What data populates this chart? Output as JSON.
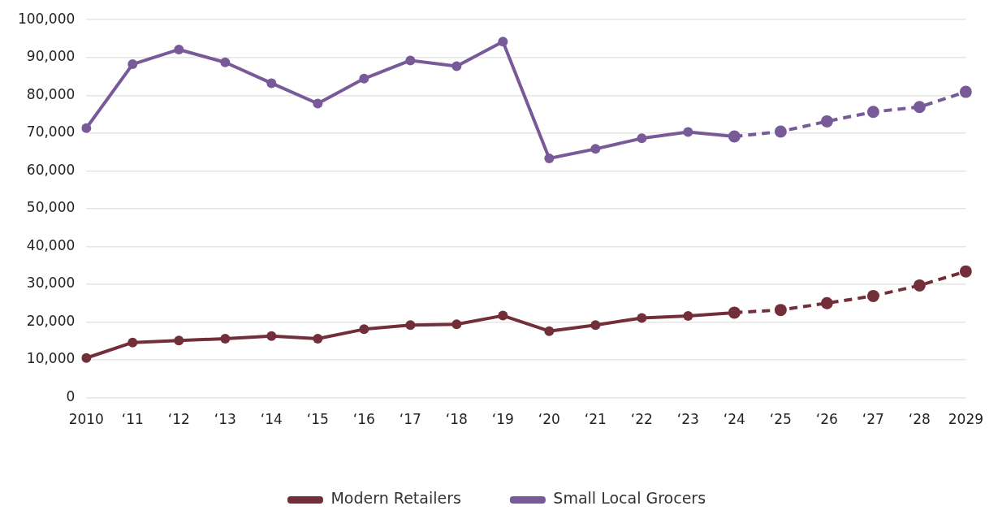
{
  "chart_data": {
    "type": "line",
    "categories": [
      "2010",
      "‘11",
      "‘12",
      "‘13",
      "‘14",
      "‘15",
      "‘16",
      "‘17",
      "‘18",
      "‘19",
      "‘20",
      "‘21",
      "‘22",
      "‘23",
      "‘24",
      "‘25",
      "‘26",
      "‘27",
      "‘28",
      "2029"
    ],
    "series": [
      {
        "name": "Modern Retailers",
        "color": "#722f3a",
        "line_style": "solid",
        "values": [
          10500,
          14600,
          15100,
          15600,
          16300,
          15600,
          18100,
          19200,
          19400,
          21700,
          17600,
          19200,
          21100,
          21600,
          22500,
          null,
          null,
          null,
          null,
          null
        ]
      },
      {
        "color": "#722f3a",
        "line_style": "dashed",
        "values": [
          null,
          null,
          null,
          null,
          null,
          null,
          null,
          null,
          null,
          null,
          null,
          null,
          null,
          null,
          22500,
          23200,
          25000,
          26900,
          29700,
          33400
        ]
      },
      {
        "name": "Small Local Grocers",
        "color": "#775a97",
        "line_style": "solid",
        "values": [
          71300,
          88200,
          92100,
          88700,
          83200,
          77800,
          84400,
          89200,
          87700,
          94200,
          63300,
          65800,
          68600,
          70300,
          69100,
          null,
          null,
          null,
          null,
          null
        ]
      },
      {
        "color": "#775a97",
        "line_style": "dashed",
        "values": [
          null,
          null,
          null,
          null,
          null,
          null,
          null,
          null,
          null,
          null,
          null,
          null,
          null,
          null,
          69100,
          70400,
          73100,
          75600,
          76900,
          80900
        ]
      }
    ],
    "ylim": [
      0,
      100000
    ],
    "yticks": [
      {
        "value": 0,
        "label": "0"
      },
      {
        "value": 10000,
        "label": "10,000"
      },
      {
        "value": 20000,
        "label": "20,000"
      },
      {
        "value": 30000,
        "label": "30,000"
      },
      {
        "value": 40000,
        "label": "40,000"
      },
      {
        "value": 50000,
        "label": "50,000"
      },
      {
        "value": 60000,
        "label": "60,000"
      },
      {
        "value": 70000,
        "label": "70,000"
      },
      {
        "value": 80000,
        "label": "80,000"
      },
      {
        "value": 90000,
        "label": "90,000"
      },
      {
        "value": 100000,
        "label": "100,000"
      }
    ],
    "grid": "y",
    "legend": "bottom",
    "marker": "circle"
  }
}
